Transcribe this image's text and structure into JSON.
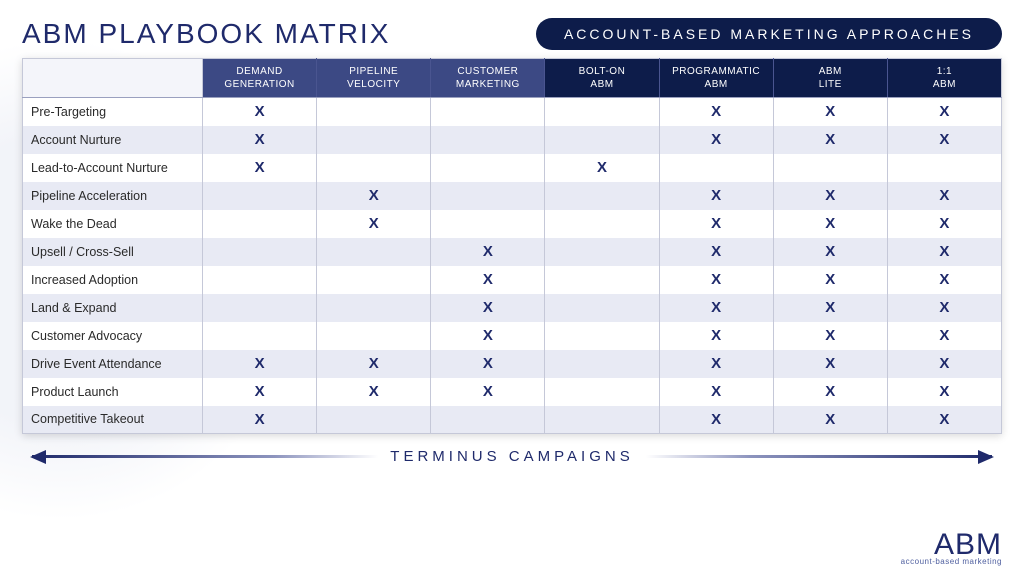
{
  "title": "ABM PLAYBOOK MATRIX",
  "pill": "ACCOUNT-BASED MARKETING APPROACHES",
  "campaign_label": "TERMINUS CAMPAIGNS",
  "logo": {
    "text": "ABM",
    "subtitle": "account-based marketing"
  },
  "colors": {
    "title": "#1f2a6b",
    "pill_bg": "#0d1c4a",
    "header_group_a": "#3c4984",
    "header_group_b": "#0d1c4a",
    "row_even_bg": "#e8eaf4",
    "row_odd_bg": "#ffffff",
    "x_mark": "#1f2a6b",
    "border": "#c5c8d8"
  },
  "columns": [
    {
      "label_line1": "DEMAND",
      "label_line2": "GENERATION",
      "group": "a"
    },
    {
      "label_line1": "PIPELINE",
      "label_line2": "VELOCITY",
      "group": "a"
    },
    {
      "label_line1": "CUSTOMER",
      "label_line2": "MARKETING",
      "group": "a"
    },
    {
      "label_line1": "BOLT-ON",
      "label_line2": "ABM",
      "group": "b"
    },
    {
      "label_line1": "PROGRAMMATIC",
      "label_line2": "ABM",
      "group": "b"
    },
    {
      "label_line1": "ABM",
      "label_line2": "LITE",
      "group": "b"
    },
    {
      "label_line1": "1:1",
      "label_line2": "ABM",
      "group": "b"
    }
  ],
  "rows": [
    {
      "label": "Pre-Targeting",
      "marks": [
        1,
        0,
        0,
        0,
        1,
        1,
        1
      ]
    },
    {
      "label": "Account Nurture",
      "marks": [
        1,
        0,
        0,
        0,
        1,
        1,
        1
      ]
    },
    {
      "label": "Lead-to-Account Nurture",
      "marks": [
        1,
        0,
        0,
        1,
        0,
        0,
        0
      ]
    },
    {
      "label": "Pipeline Acceleration",
      "marks": [
        0,
        1,
        0,
        0,
        1,
        1,
        1
      ]
    },
    {
      "label": "Wake the Dead",
      "marks": [
        0,
        1,
        0,
        0,
        1,
        1,
        1
      ]
    },
    {
      "label": "Upsell / Cross-Sell",
      "marks": [
        0,
        0,
        1,
        0,
        1,
        1,
        1
      ]
    },
    {
      "label": "Increased Adoption",
      "marks": [
        0,
        0,
        1,
        0,
        1,
        1,
        1
      ]
    },
    {
      "label": "Land & Expand",
      "marks": [
        0,
        0,
        1,
        0,
        1,
        1,
        1
      ]
    },
    {
      "label": "Customer Advocacy",
      "marks": [
        0,
        0,
        1,
        0,
        1,
        1,
        1
      ]
    },
    {
      "label": "Drive Event Attendance",
      "marks": [
        1,
        1,
        1,
        0,
        1,
        1,
        1
      ]
    },
    {
      "label": "Product Launch",
      "marks": [
        1,
        1,
        1,
        0,
        1,
        1,
        1
      ]
    },
    {
      "label": "Competitive Takeout",
      "marks": [
        1,
        0,
        0,
        0,
        1,
        1,
        1
      ]
    }
  ]
}
